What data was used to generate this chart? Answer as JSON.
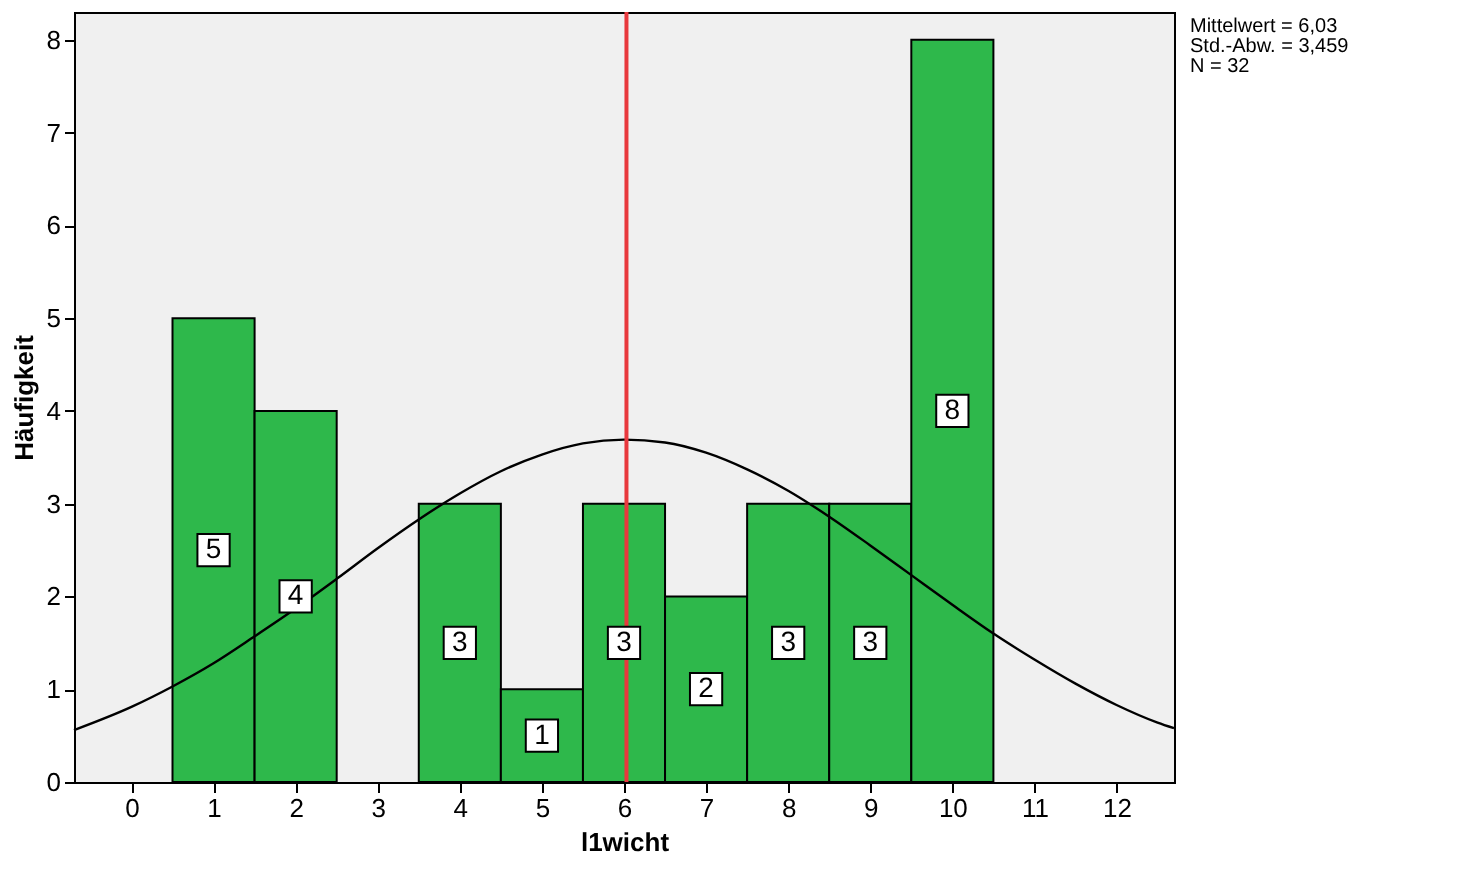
{
  "chart_data": {
    "type": "histogram",
    "xlabel": "l1wicht",
    "ylabel": "Häufigkeit",
    "bins": [
      0.5,
      1.5,
      2.5,
      3.5,
      4.5,
      5.5,
      6.5,
      7.5,
      8.5,
      9.5,
      10.5
    ],
    "values": [
      5,
      4,
      0,
      3,
      1,
      3,
      2,
      3,
      3,
      8
    ],
    "value_labels": [
      "5",
      "4",
      null,
      "3",
      "1",
      "3",
      "2",
      "3",
      "3",
      "8"
    ],
    "color": "#2eb84b",
    "series": [
      {
        "type": "line",
        "color": "#000000",
        "x": [
          -0.7,
          0,
          0.5,
          1,
          1.5,
          2,
          2.5,
          3,
          3.5,
          4,
          4.5,
          5,
          5.5,
          6,
          6.5,
          7,
          7.5,
          8,
          8.5,
          9,
          9.5,
          10,
          10.5,
          11,
          11.5,
          12,
          12.5,
          12.7
        ],
        "values": [
          0.56,
          0.81,
          1.03,
          1.28,
          1.57,
          1.87,
          2.19,
          2.52,
          2.83,
          3.11,
          3.35,
          3.53,
          3.65,
          3.69,
          3.66,
          3.55,
          3.37,
          3.14,
          2.86,
          2.55,
          2.23,
          1.91,
          1.6,
          1.32,
          1.06,
          0.83,
          0.64,
          0.58
        ]
      }
    ],
    "ref_lines": [
      {
        "axis": "x",
        "value": 6.03,
        "color": "#e8383d"
      }
    ],
    "annotations": [
      "Mittelwert = 6,03",
      "Std.-Abw. = 3,459",
      "N = 32"
    ],
    "xlim": [
      -0.7,
      12.7
    ],
    "xticks": [
      0,
      1,
      2,
      3,
      4,
      5,
      6,
      7,
      8,
      9,
      10,
      11,
      12
    ],
    "ylim": [
      0,
      8.3
    ],
    "yticks": [
      0,
      1,
      2,
      3,
      4,
      5,
      6,
      7,
      8
    ],
    "grid": false
  }
}
